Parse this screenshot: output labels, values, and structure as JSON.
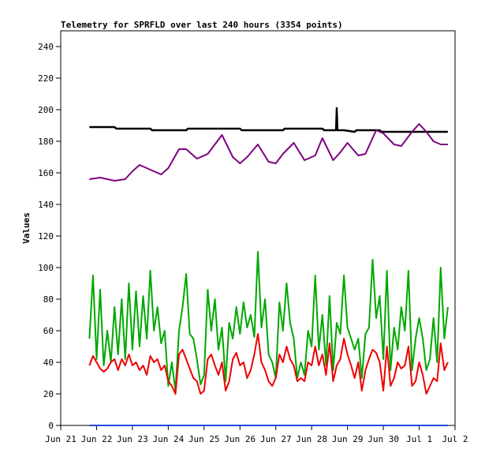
{
  "chart_data": {
    "type": "line",
    "title": "Telemetry for SPRFLD over last 240 hours (3354 points)",
    "xlabel": "",
    "ylabel": "Values",
    "ylim": [
      0,
      250
    ],
    "yticks": [
      0,
      20,
      40,
      60,
      80,
      100,
      120,
      140,
      160,
      180,
      200,
      220,
      240
    ],
    "xlim": [
      0,
      11
    ],
    "xticks": [
      {
        "label": "Jun 21",
        "x": 0
      },
      {
        "label": "Jun 22",
        "x": 1
      },
      {
        "label": "Jun 23",
        "x": 2
      },
      {
        "label": "Jun 24",
        "x": 3
      },
      {
        "label": "Jun 25",
        "x": 4
      },
      {
        "label": "Jun 26",
        "x": 5
      },
      {
        "label": "Jun 27",
        "x": 6
      },
      {
        "label": "Jun 28",
        "x": 7
      },
      {
        "label": "Jun 29",
        "x": 8
      },
      {
        "label": "Jun 30",
        "x": 9
      },
      {
        "label": "Jul 1",
        "x": 10
      },
      {
        "label": "Jul 2",
        "x": 11
      }
    ],
    "series": [
      {
        "color": "#000000",
        "x": [
          0.8,
          1.5,
          1.55,
          2.5,
          2.55,
          3.5,
          3.55,
          5.0,
          5.05,
          6.2,
          6.25,
          7.3,
          7.35,
          7.68,
          7.7,
          7.72,
          7.9,
          8.2,
          8.25,
          8.9,
          8.95,
          9.6,
          9.65,
          10.8
        ],
        "y": [
          189,
          189,
          188,
          188,
          187,
          187,
          188,
          188,
          187,
          187,
          188,
          188,
          187,
          187,
          201,
          187,
          187,
          186,
          187,
          187,
          186,
          186,
          186,
          186
        ]
      },
      {
        "color": "#7d0080",
        "x": [
          0.8,
          1.1,
          1.5,
          1.8,
          2.0,
          2.2,
          2.5,
          2.8,
          3.0,
          3.3,
          3.5,
          3.8,
          4.1,
          4.5,
          4.8,
          5.0,
          5.2,
          5.5,
          5.8,
          6.0,
          6.2,
          6.5,
          6.8,
          7.1,
          7.3,
          7.6,
          7.8,
          8.0,
          8.3,
          8.5,
          8.8,
          9.0,
          9.3,
          9.5,
          9.8,
          10.0,
          10.2,
          10.4,
          10.6,
          10.8
        ],
        "y": [
          156,
          157,
          155,
          156,
          161,
          165,
          162,
          159,
          163,
          175,
          175,
          169,
          172,
          184,
          170,
          166,
          170,
          178,
          167,
          166,
          172,
          179,
          168,
          171,
          182,
          168,
          173,
          179,
          171,
          172,
          187,
          185,
          178,
          177,
          186,
          191,
          186,
          180,
          178,
          178
        ]
      },
      {
        "color": "#00a800",
        "x": [
          0.8,
          0.9,
          1.0,
          1.1,
          1.2,
          1.3,
          1.4,
          1.5,
          1.6,
          1.7,
          1.8,
          1.9,
          2.0,
          2.1,
          2.2,
          2.3,
          2.4,
          2.5,
          2.6,
          2.7,
          2.8,
          2.9,
          3.0,
          3.1,
          3.2,
          3.3,
          3.4,
          3.5,
          3.6,
          3.7,
          3.8,
          3.9,
          4.0,
          4.1,
          4.2,
          4.3,
          4.4,
          4.5,
          4.6,
          4.7,
          4.8,
          4.9,
          5.0,
          5.1,
          5.2,
          5.3,
          5.4,
          5.5,
          5.6,
          5.7,
          5.8,
          5.9,
          6.0,
          6.1,
          6.2,
          6.3,
          6.4,
          6.5,
          6.6,
          6.7,
          6.8,
          6.9,
          7.0,
          7.1,
          7.2,
          7.3,
          7.4,
          7.5,
          7.6,
          7.7,
          7.8,
          7.9,
          8.0,
          8.1,
          8.2,
          8.3,
          8.4,
          8.5,
          8.6,
          8.7,
          8.8,
          8.9,
          9.0,
          9.1,
          9.2,
          9.3,
          9.4,
          9.5,
          9.6,
          9.7,
          9.8,
          9.9,
          10.0,
          10.1,
          10.2,
          10.3,
          10.4,
          10.5,
          10.6,
          10.7,
          10.8
        ],
        "y": [
          55,
          95,
          42,
          86,
          38,
          60,
          40,
          75,
          45,
          80,
          42,
          90,
          48,
          85,
          50,
          82,
          55,
          98,
          60,
          75,
          52,
          60,
          25,
          40,
          22,
          60,
          75,
          96,
          58,
          55,
          42,
          26,
          32,
          86,
          60,
          80,
          48,
          62,
          28,
          65,
          55,
          75,
          58,
          78,
          62,
          70,
          56,
          110,
          62,
          80,
          45,
          40,
          30,
          78,
          60,
          90,
          65,
          55,
          30,
          40,
          32,
          60,
          50,
          95,
          48,
          70,
          38,
          82,
          35,
          65,
          58,
          95,
          62,
          55,
          48,
          55,
          30,
          58,
          62,
          105,
          68,
          82,
          42,
          98,
          35,
          62,
          48,
          75,
          60,
          98,
          35,
          55,
          68,
          55,
          35,
          42,
          68,
          40,
          100,
          55,
          75
        ]
      },
      {
        "color": "#ee0000",
        "x": [
          0.8,
          0.9,
          1.0,
          1.1,
          1.2,
          1.3,
          1.4,
          1.5,
          1.6,
          1.7,
          1.8,
          1.9,
          2.0,
          2.1,
          2.2,
          2.3,
          2.4,
          2.5,
          2.6,
          2.7,
          2.8,
          2.9,
          3.0,
          3.1,
          3.2,
          3.3,
          3.4,
          3.5,
          3.6,
          3.7,
          3.8,
          3.9,
          4.0,
          4.1,
          4.2,
          4.3,
          4.4,
          4.5,
          4.6,
          4.7,
          4.8,
          4.9,
          5.0,
          5.1,
          5.2,
          5.3,
          5.4,
          5.5,
          5.6,
          5.7,
          5.8,
          5.9,
          6.0,
          6.1,
          6.2,
          6.3,
          6.4,
          6.5,
          6.6,
          6.7,
          6.8,
          6.9,
          7.0,
          7.1,
          7.2,
          7.3,
          7.4,
          7.5,
          7.6,
          7.7,
          7.8,
          7.9,
          8.0,
          8.1,
          8.2,
          8.3,
          8.4,
          8.5,
          8.6,
          8.7,
          8.8,
          8.9,
          9.0,
          9.1,
          9.2,
          9.3,
          9.4,
          9.5,
          9.6,
          9.7,
          9.8,
          9.9,
          10.0,
          10.1,
          10.2,
          10.3,
          10.4,
          10.5,
          10.6,
          10.7,
          10.8
        ],
        "y": [
          38,
          44,
          40,
          36,
          34,
          36,
          40,
          42,
          35,
          42,
          38,
          45,
          38,
          40,
          35,
          38,
          32,
          44,
          40,
          42,
          35,
          38,
          28,
          25,
          20,
          45,
          48,
          42,
          36,
          30,
          28,
          20,
          22,
          42,
          45,
          38,
          32,
          40,
          22,
          28,
          42,
          46,
          38,
          40,
          30,
          35,
          45,
          58,
          40,
          35,
          28,
          25,
          30,
          45,
          40,
          50,
          42,
          38,
          28,
          30,
          28,
          40,
          38,
          50,
          38,
          45,
          32,
          52,
          28,
          38,
          42,
          55,
          45,
          38,
          30,
          40,
          22,
          35,
          42,
          48,
          46,
          40,
          22,
          50,
          25,
          30,
          40,
          36,
          38,
          50,
          25,
          28,
          40,
          32,
          20,
          25,
          30,
          28,
          52,
          35,
          40
        ]
      },
      {
        "color": "#1f4bd8",
        "x": [
          0.8,
          10.8
        ],
        "y": [
          0,
          0
        ]
      }
    ]
  }
}
